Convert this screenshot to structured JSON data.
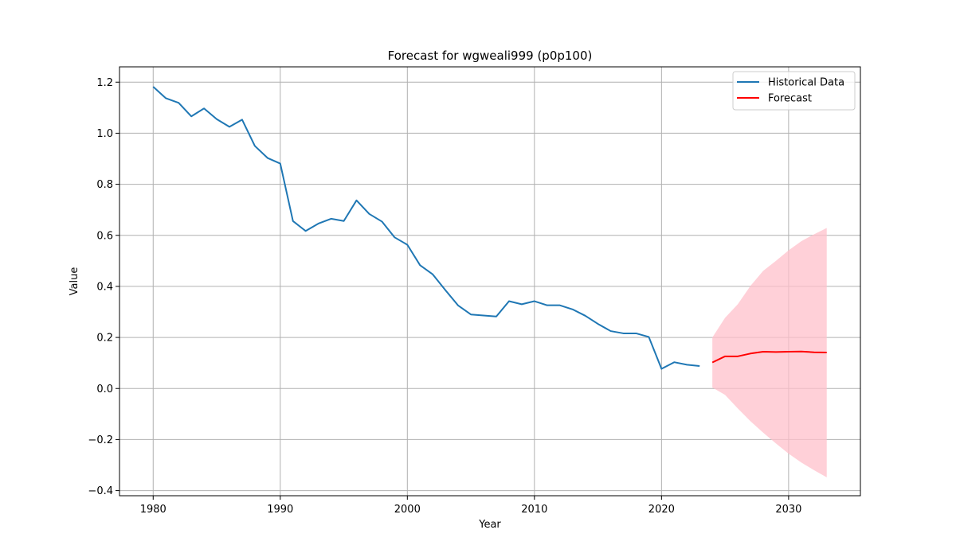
{
  "chart_data": {
    "type": "line",
    "title": "Forecast for wgweali999 (p0p100)",
    "xlabel": "Year",
    "ylabel": "Value",
    "xlim": [
      1977.35,
      2035.65
    ],
    "ylim": [
      -0.42,
      1.26
    ],
    "xticks": [
      1980,
      1990,
      2000,
      2010,
      2020,
      2030
    ],
    "yticks": [
      -0.4,
      -0.2,
      0.0,
      0.2,
      0.4,
      0.6,
      0.8,
      1.0,
      1.2
    ],
    "xtick_labels": [
      "1980",
      "1990",
      "2000",
      "2010",
      "2020",
      "2030"
    ],
    "ytick_labels": [
      "−0.4",
      "−0.2",
      "0.0",
      "0.2",
      "0.4",
      "0.6",
      "0.8",
      "1.0",
      "1.2"
    ],
    "grid": true,
    "legend": {
      "position": "upper-right",
      "entries": [
        "Historical Data",
        "Forecast"
      ]
    },
    "series": [
      {
        "name": "Historical Data",
        "color": "#1f77b4",
        "x": [
          1980,
          1981,
          1982,
          1983,
          1984,
          1985,
          1986,
          1987,
          1988,
          1989,
          1990,
          1991,
          1992,
          1993,
          1994,
          1995,
          1996,
          1997,
          1998,
          1999,
          2000,
          2001,
          2002,
          2003,
          2004,
          2005,
          2006,
          2007,
          2008,
          2009,
          2010,
          2011,
          2012,
          2013,
          2014,
          2015,
          2016,
          2017,
          2018,
          2019,
          2020,
          2021,
          2022,
          2023
        ],
        "y": [
          1.182,
          1.137,
          1.119,
          1.066,
          1.097,
          1.055,
          1.025,
          1.053,
          0.95,
          0.903,
          0.881,
          0.656,
          0.617,
          0.646,
          0.665,
          0.656,
          0.737,
          0.684,
          0.654,
          0.592,
          0.563,
          0.483,
          0.447,
          0.385,
          0.325,
          0.29,
          0.286,
          0.282,
          0.342,
          0.33,
          0.342,
          0.326,
          0.326,
          0.31,
          0.285,
          0.253,
          0.225,
          0.216,
          0.216,
          0.202,
          0.077,
          0.103,
          0.093,
          0.088
        ]
      },
      {
        "name": "Forecast",
        "color": "#ff0000",
        "x": [
          2024,
          2025,
          2026,
          2027,
          2028,
          2029,
          2030,
          2031,
          2032,
          2033
        ],
        "y": [
          0.102,
          0.126,
          0.126,
          0.137,
          0.144,
          0.143,
          0.144,
          0.145,
          0.142,
          0.141
        ]
      }
    ],
    "confidence_band": {
      "color": "#ffc0cb",
      "x": [
        2024,
        2025,
        2026,
        2027,
        2028,
        2029,
        2030,
        2031,
        2032,
        2033
      ],
      "lower": [
        0.004,
        -0.025,
        -0.078,
        -0.128,
        -0.173,
        -0.215,
        -0.255,
        -0.29,
        -0.32,
        -0.348
      ],
      "upper": [
        0.2,
        0.277,
        0.33,
        0.402,
        0.461,
        0.5,
        0.541,
        0.577,
        0.604,
        0.629
      ]
    }
  }
}
